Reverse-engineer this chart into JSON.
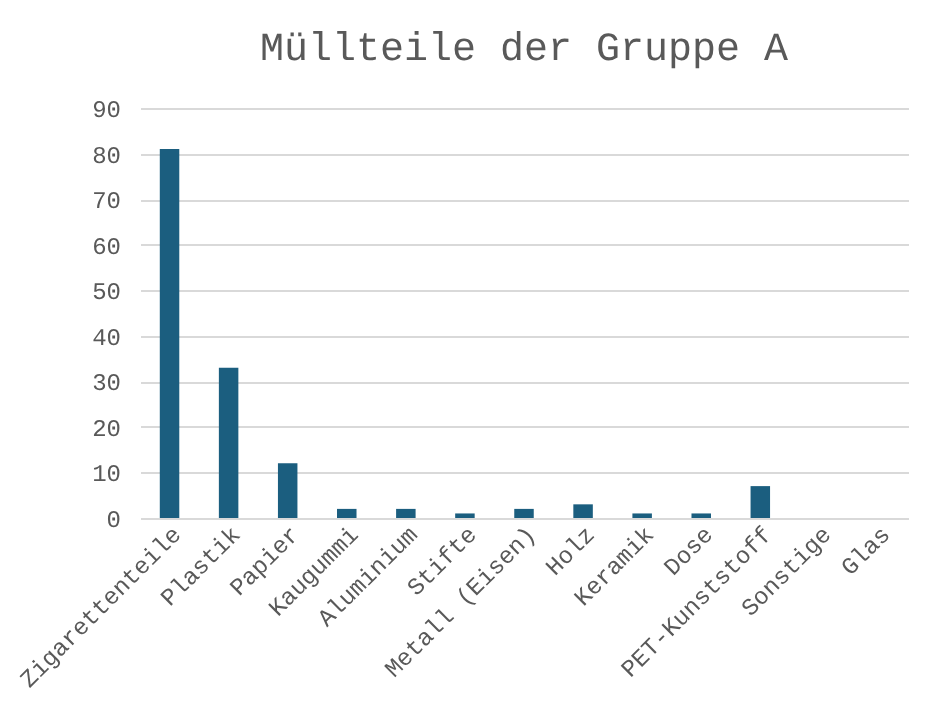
{
  "chart_data": {
    "type": "bar",
    "title": "Müllteile der Gruppe A",
    "categories": [
      "Zigarettenteile",
      "Plastik",
      "Papier",
      "Kaugummi",
      "Aluminium",
      "Stifte",
      "Metall (Eisen)",
      "Holz",
      "Keramik",
      "Dose",
      "PET-Kunststoff",
      "Sonstige",
      "Glas"
    ],
    "values": [
      81,
      33,
      12,
      2,
      2,
      1,
      2,
      3,
      1,
      1,
      7,
      0,
      0
    ],
    "color": "#1b5e7f",
    "ylim": [
      0,
      90
    ],
    "yticks": [
      0,
      10,
      20,
      30,
      40,
      50,
      60,
      70,
      80,
      90
    ],
    "grid": "y"
  }
}
